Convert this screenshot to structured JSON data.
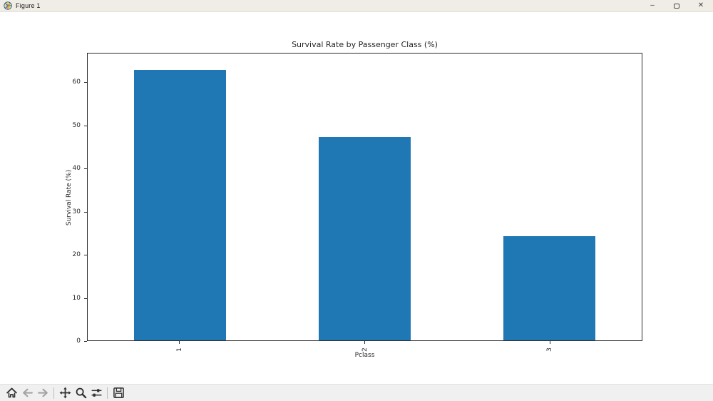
{
  "window": {
    "title": "Figure 1",
    "app_icon": "matplotlib-logo-icon",
    "controls": [
      {
        "name": "minimize-button",
        "icon": "minimize-icon",
        "glyph": "–"
      },
      {
        "name": "restore-button",
        "icon": "restore-icon",
        "glyph": ""
      },
      {
        "name": "close-button",
        "icon": "close-icon",
        "glyph": "✕"
      }
    ]
  },
  "chart_data": {
    "type": "bar",
    "title": "Survival Rate by Passenger Class (%)",
    "xlabel": "Pclass",
    "ylabel": "Survival Rate (%)",
    "categories": [
      "1",
      "2",
      "3"
    ],
    "values": [
      62.96,
      47.28,
      24.24
    ],
    "yticks": [
      0,
      10,
      20,
      30,
      40,
      50,
      60
    ],
    "ylim": [
      0,
      66.8
    ],
    "bar_color": "#1f77b4",
    "bar_width_fraction": 0.5,
    "x_tick_rotation": 90,
    "grid": false,
    "legend": "none"
  },
  "toolbar": {
    "buttons": [
      {
        "name": "home-button",
        "icon": "home-icon",
        "enabled": true,
        "group": 1
      },
      {
        "name": "back-button",
        "icon": "back-arrow-icon",
        "enabled": false,
        "group": 1
      },
      {
        "name": "forward-button",
        "icon": "forward-arrow-icon",
        "enabled": false,
        "group": 1
      },
      {
        "name": "pan-button",
        "icon": "pan-arrows-icon",
        "enabled": true,
        "group": 2
      },
      {
        "name": "zoom-button",
        "icon": "zoom-magnifier-icon",
        "enabled": true,
        "group": 2
      },
      {
        "name": "subplots-button",
        "icon": "sliders-icon",
        "enabled": true,
        "group": 2
      },
      {
        "name": "save-button",
        "icon": "save-floppy-icon",
        "enabled": true,
        "group": 3
      }
    ]
  },
  "colors": {
    "titlebar_bg": "#f0ede6",
    "toolbar_bg": "#f0f0f0",
    "axes_edge": "#2b2b2b",
    "icon_enabled": "#2f2f2f",
    "icon_disabled": "#a3a3a3"
  }
}
